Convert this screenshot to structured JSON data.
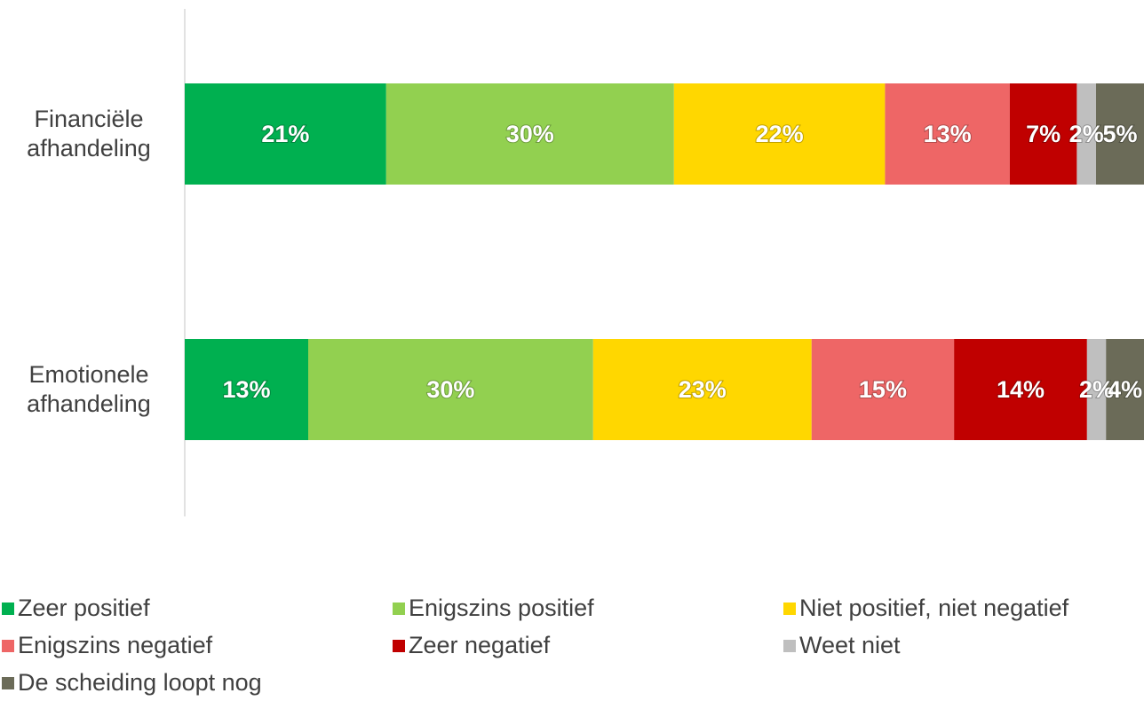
{
  "chart_data": {
    "type": "bar",
    "orientation": "horizontal",
    "stacked": true,
    "categories": [
      "Financiële afhandeling",
      "Emotionele afhandeling"
    ],
    "series": [
      {
        "name": "Zeer positief",
        "color": "#00b050",
        "values": [
          21,
          13
        ],
        "value_labels": [
          "21%",
          "13%"
        ]
      },
      {
        "name": "Enigszins positief",
        "color": "#92d050",
        "values": [
          30,
          30
        ],
        "value_labels": [
          "30%",
          "30%"
        ]
      },
      {
        "name": "Niet positief, niet negatief",
        "color": "#ffd700",
        "values": [
          22,
          23
        ],
        "value_labels": [
          "22%",
          "23%"
        ]
      },
      {
        "name": "Enigszins negatief",
        "color": "#ee6666",
        "values": [
          13,
          15
        ],
        "value_labels": [
          "13%",
          "15%"
        ]
      },
      {
        "name": "Zeer negatief",
        "color": "#c00000",
        "values": [
          7,
          14
        ],
        "value_labels": [
          "7%",
          "14%"
        ]
      },
      {
        "name": "Weet niet",
        "color": "#bfbfbf",
        "values": [
          2,
          2
        ],
        "value_labels": [
          "2%",
          "2%"
        ]
      },
      {
        "name": "De scheiding loopt nog",
        "color": "#6b6b58",
        "values": [
          5,
          4
        ],
        "value_labels": [
          "5%",
          "4%"
        ]
      }
    ],
    "legend": "bottom"
  }
}
